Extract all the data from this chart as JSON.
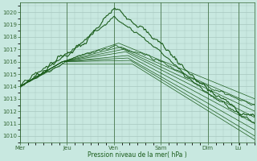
{
  "bg_color": "#c8e8e0",
  "grid_color": "#a8c8c0",
  "line_color": "#1a5c1a",
  "ylabel_ticks": [
    1010,
    1011,
    1012,
    1013,
    1014,
    1015,
    1016,
    1017,
    1018,
    1019,
    1020
  ],
  "ylim": [
    1009.5,
    1020.8
  ],
  "xlabel": "Pression niveau de la mer( hPa )",
  "day_labels": [
    "Mer",
    "Jeu",
    "Ven",
    "Sam",
    "Dim",
    "Lu"
  ],
  "day_positions": [
    0,
    0.2,
    0.4,
    0.6,
    0.8,
    0.93
  ],
  "total_points": 300,
  "xlabel_color": "#1a5c1a",
  "tick_color": "#336633"
}
